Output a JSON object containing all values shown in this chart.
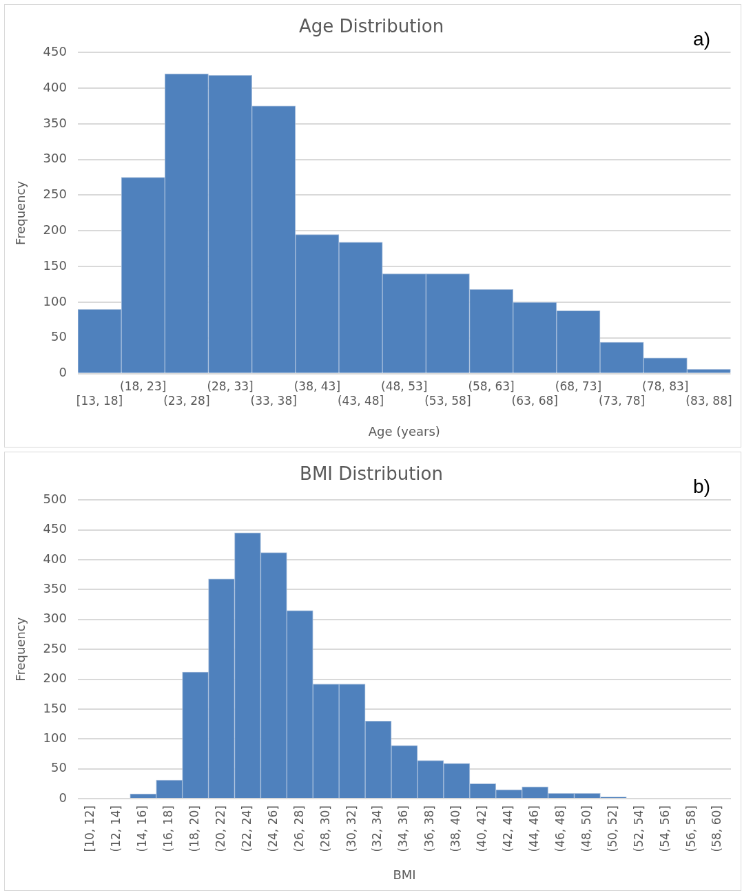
{
  "chart_data": [
    {
      "type": "bar",
      "title": "Age Distribution",
      "xlabel": "Age (years)",
      "ylabel": "Frequency",
      "categories": [
        "[13, 18]",
        "(18, 23]",
        "(23, 28]",
        "(28, 33]",
        "(33, 38]",
        "(38, 43]",
        "(43, 48]",
        "(48, 53]",
        "(53, 58]",
        "(58, 63]",
        "(63, 68]",
        "(68, 73]",
        "(73, 78]",
        "(78, 83]",
        "(83, 88]"
      ],
      "values": [
        90,
        275,
        420,
        418,
        375,
        195,
        184,
        140,
        140,
        118,
        100,
        88,
        44,
        22,
        6
      ],
      "color": "#4f81bd",
      "ylim": [
        0,
        450
      ],
      "yticks": [
        0,
        50,
        100,
        150,
        200,
        250,
        300,
        350,
        400,
        450
      ],
      "grid": "y",
      "legend": false,
      "annotations": [
        "a)"
      ]
    },
    {
      "type": "bar",
      "title": "BMI Distribution",
      "xlabel": "BMI",
      "ylabel": "Frequency",
      "categories": [
        "[10, 12]",
        "(12, 14]",
        "(14, 16]",
        "(16, 18]",
        "(18, 20]",
        "(20, 22]",
        "(22, 24]",
        "(24, 26]",
        "(26, 28]",
        "(28, 30]",
        "(30, 32]",
        "(32, 34]",
        "(34, 36]",
        "(36, 38]",
        "(38, 40]",
        "(40, 42]",
        "(42, 44]",
        "(44, 46]",
        "(46, 48]",
        "(48, 50]",
        "(50, 52]",
        "(52, 54]",
        "(54, 56]",
        "(56, 58]",
        "(58, 60]"
      ],
      "values": [
        0,
        0,
        8,
        31,
        212,
        368,
        445,
        412,
        315,
        192,
        192,
        130,
        89,
        64,
        59,
        25,
        15,
        20,
        9,
        9,
        3,
        0,
        0,
        0,
        0
      ],
      "color": "#4f81bd",
      "ylim": [
        0,
        500
      ],
      "yticks": [
        0,
        50,
        100,
        150,
        200,
        250,
        300,
        350,
        400,
        450,
        500
      ],
      "grid": "y",
      "legend": false,
      "annotations": [
        "b)"
      ]
    }
  ]
}
